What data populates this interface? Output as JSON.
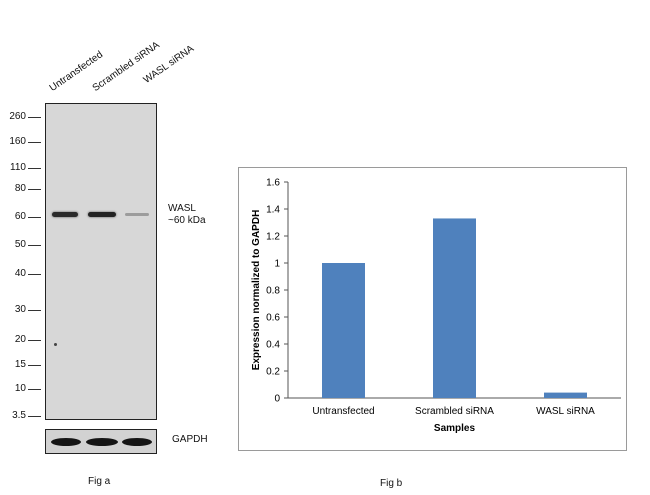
{
  "fig_a": {
    "lanes": [
      "Untransfected",
      "Scrambled siRNA",
      "WASL siRNA"
    ],
    "mw_markers": [
      "260",
      "160",
      "110",
      "80",
      "60",
      "50",
      "40",
      "30",
      "20",
      "15",
      "10",
      "3.5"
    ],
    "target_label": "WASL",
    "target_size": "~60 kDa",
    "loading_control": "GAPDH",
    "caption": "Fig a"
  },
  "fig_b": {
    "caption": "Fig b"
  },
  "chart_data": {
    "type": "bar",
    "title": "",
    "categories": [
      "Untransfected",
      "Scrambled siRNA",
      "WASL siRNA"
    ],
    "values": [
      1.0,
      1.33,
      0.04
    ],
    "xlabel": "Samples",
    "ylabel": "Expression normalized to GAPDH",
    "ylim": [
      0,
      1.6
    ],
    "yticks": [
      "0",
      "0.2",
      "0.4",
      "0.6",
      "0.8",
      "1",
      "1.2",
      "1.4",
      "1.6"
    ],
    "bar_color": "#4f81bd",
    "grid": false,
    "legend": "none"
  }
}
